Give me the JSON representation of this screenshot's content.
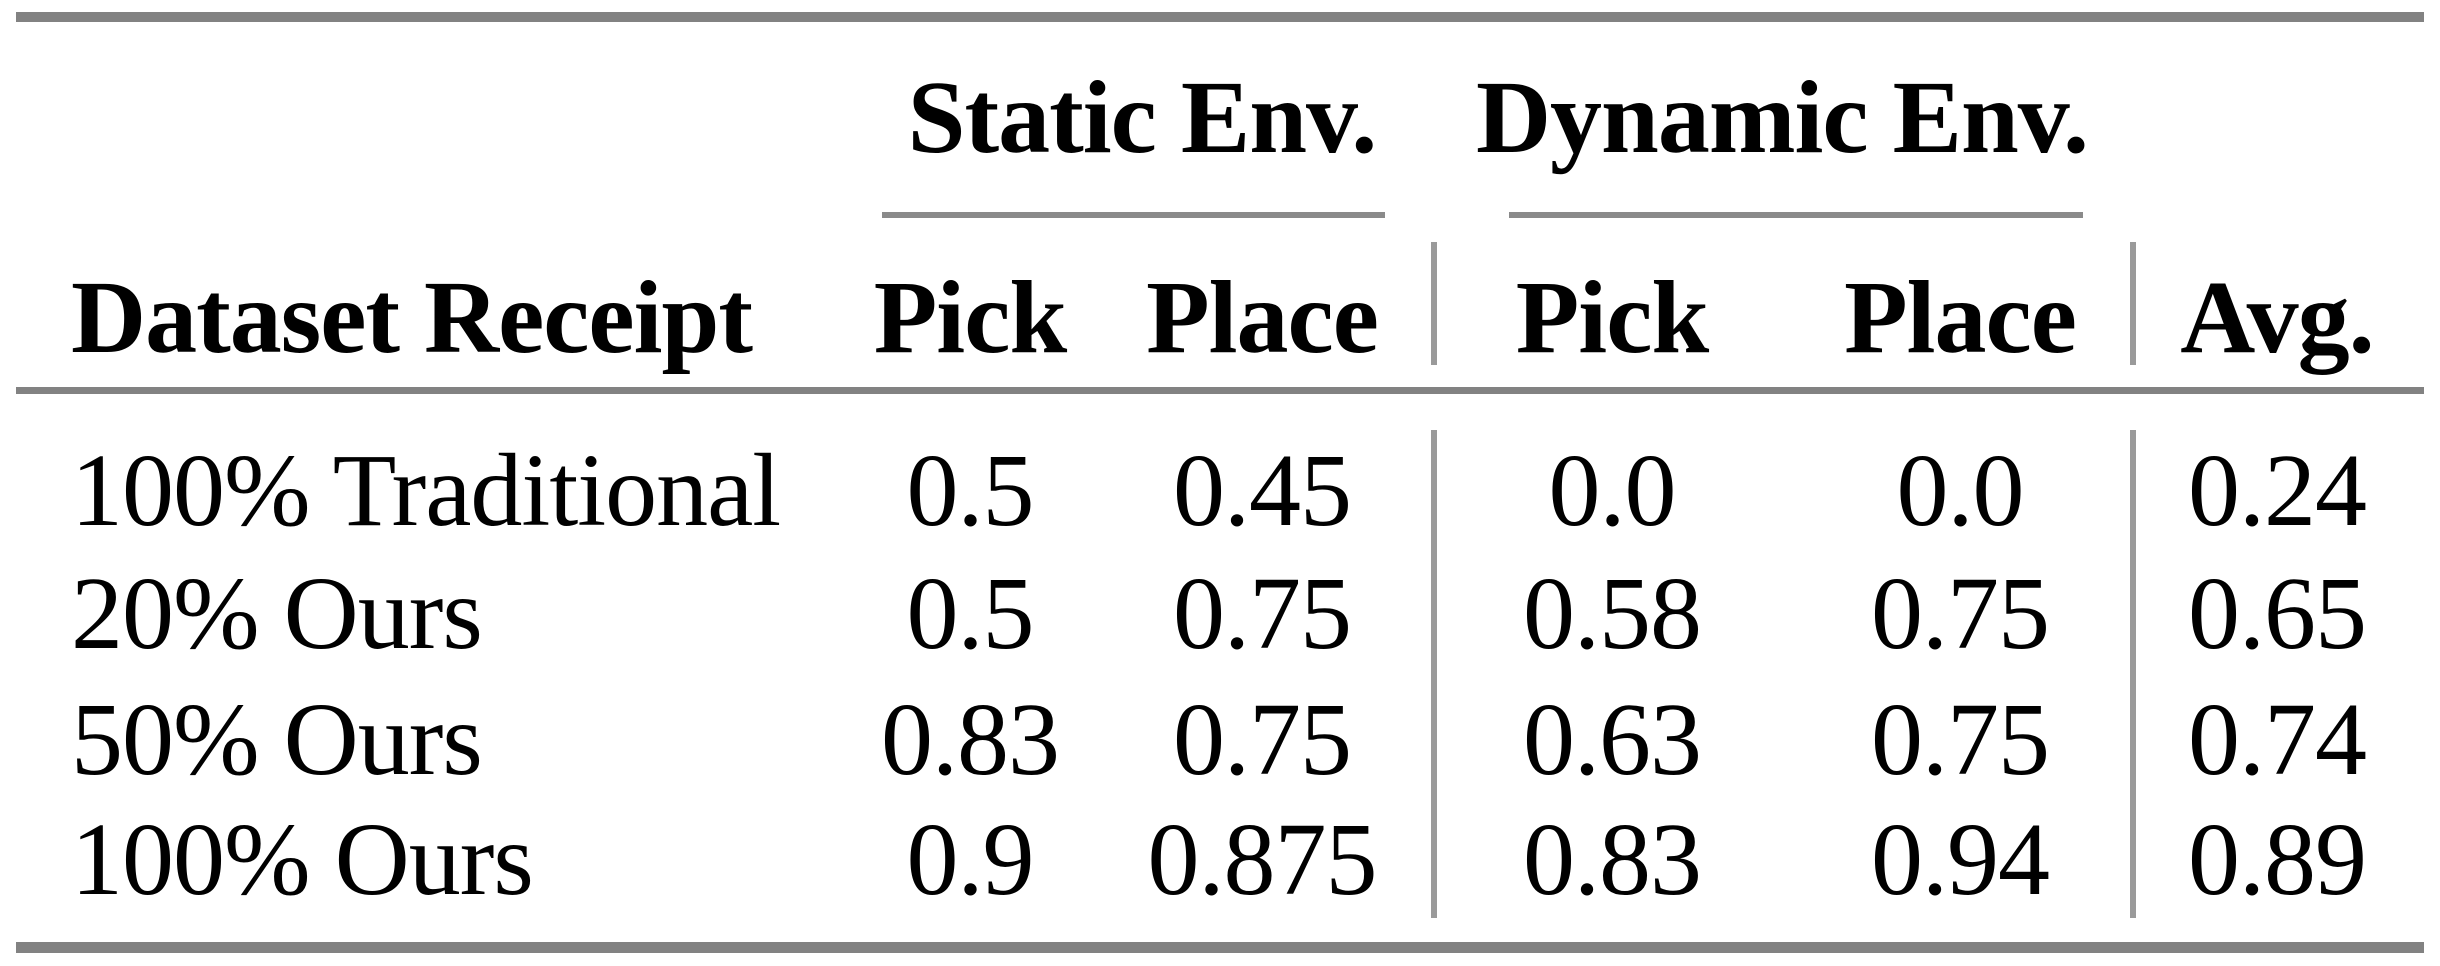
{
  "table": {
    "col_groups": [
      {
        "label": "Static Env."
      },
      {
        "label": "Dynamic Env."
      }
    ],
    "columns": {
      "label": "Dataset Receipt",
      "static_pick": "Pick",
      "static_place": "Place",
      "dynamic_pick": "Pick",
      "dynamic_place": "Place",
      "avg": "Avg."
    },
    "rows": [
      {
        "label": "100% Traditional",
        "static_pick": "0.5",
        "static_place": "0.45",
        "dynamic_pick": "0.0",
        "dynamic_place": "0.0",
        "avg": "0.24"
      },
      {
        "label": "20% Ours",
        "static_pick": "0.5",
        "static_place": "0.75",
        "dynamic_pick": "0.58",
        "dynamic_place": "0.75",
        "avg": "0.65"
      },
      {
        "label": "50% Ours",
        "static_pick": "0.83",
        "static_place": "0.75",
        "dynamic_pick": "0.63",
        "dynamic_place": "0.75",
        "avg": "0.74"
      },
      {
        "label": "100% Ours",
        "static_pick": "0.9",
        "static_place": "0.875",
        "dynamic_pick": "0.83",
        "dynamic_place": "0.94",
        "avg": "0.89"
      }
    ]
  },
  "colors": {
    "thick_rule": "#828282",
    "thin_rule": "#8a8a8a",
    "vertical_rule": "#9a9a9a",
    "text": "#000000",
    "background": "#ffffff"
  }
}
